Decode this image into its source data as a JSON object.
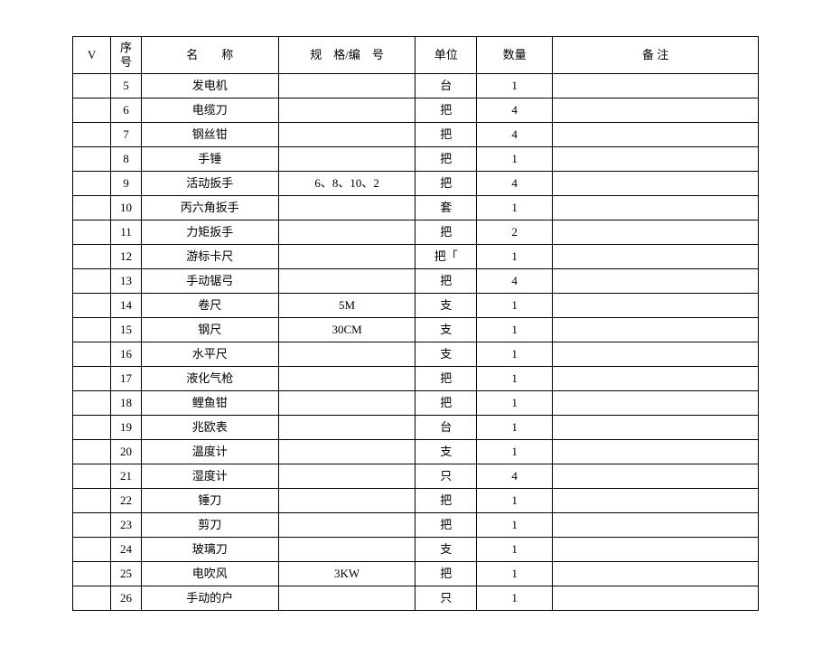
{
  "table": {
    "border_color": "#000000",
    "background_color": "#ffffff",
    "font_family": "SimSun",
    "font_size_pt": 10,
    "header": {
      "v": "V",
      "seq": "序号",
      "name": "名　　称",
      "spec": "规　格/编　号",
      "unit": "单位",
      "qty": "数量",
      "note": "备 注"
    },
    "rows": [
      {
        "v": "",
        "seq": "5",
        "name": "发电机",
        "spec": "",
        "unit": "台",
        "qty": "1",
        "note": ""
      },
      {
        "v": "",
        "seq": "6",
        "name": "电缆刀",
        "spec": "",
        "unit": "把",
        "qty": "4",
        "note": ""
      },
      {
        "v": "",
        "seq": "7",
        "name": "钢丝钳",
        "spec": "",
        "unit": "把",
        "qty": "4",
        "note": ""
      },
      {
        "v": "",
        "seq": "8",
        "name": "手锤",
        "spec": "",
        "unit": "把",
        "qty": "1",
        "note": ""
      },
      {
        "v": "",
        "seq": "9",
        "name": "活动扳手",
        "spec": "6、8、10、2",
        "unit": "把",
        "qty": "4",
        "note": ""
      },
      {
        "v": "",
        "seq": "10",
        "name": "丙六角扳手",
        "spec": "",
        "unit": "套",
        "qty": "1",
        "note": ""
      },
      {
        "v": "",
        "seq": "11",
        "name": "力矩扳手",
        "spec": "",
        "unit": "把",
        "qty": "2",
        "note": ""
      },
      {
        "v": "",
        "seq": "12",
        "name": "游标卡尺",
        "spec": "",
        "unit": "把「",
        "qty": "1",
        "note": ""
      },
      {
        "v": "",
        "seq": "13",
        "name": "手动锯弓",
        "spec": "",
        "unit": "把",
        "qty": "4",
        "note": ""
      },
      {
        "v": "",
        "seq": "14",
        "name": "卷尺",
        "spec": "5M",
        "unit": "支",
        "qty": "1",
        "note": ""
      },
      {
        "v": "",
        "seq": "15",
        "name": "钢尺",
        "spec": "30CM",
        "unit": "支",
        "qty": "1",
        "note": ""
      },
      {
        "v": "",
        "seq": "16",
        "name": "水平尺",
        "spec": "",
        "unit": "支",
        "qty": "1",
        "note": ""
      },
      {
        "v": "",
        "seq": "17",
        "name": "液化气枪",
        "spec": "",
        "unit": "把",
        "qty": "1",
        "note": ""
      },
      {
        "v": "",
        "seq": "18",
        "name": "鲤鱼钳",
        "spec": "",
        "unit": "把",
        "qty": "1",
        "note": ""
      },
      {
        "v": "",
        "seq": "19",
        "name": "兆欧表",
        "spec": "",
        "unit": "台",
        "qty": "1",
        "note": ""
      },
      {
        "v": "",
        "seq": "20",
        "name": "温度计",
        "spec": "",
        "unit": "支",
        "qty": "1",
        "note": ""
      },
      {
        "v": "",
        "seq": "21",
        "name": "湿度计",
        "spec": "",
        "unit": "只",
        "qty": "4",
        "note": ""
      },
      {
        "v": "",
        "seq": "22",
        "name": "锤刀",
        "spec": "",
        "unit": "把",
        "qty": "1",
        "note": ""
      },
      {
        "v": "",
        "seq": "23",
        "name": "剪刀",
        "spec": "",
        "unit": "把",
        "qty": "1",
        "note": ""
      },
      {
        "v": "",
        "seq": "24",
        "name": "玻璃刀",
        "spec": "",
        "unit": "支",
        "qty": "1",
        "note": ""
      },
      {
        "v": "",
        "seq": "25",
        "name": "电吹风",
        "spec": "3KW",
        "unit": "把",
        "qty": "1",
        "note": ""
      },
      {
        "v": "",
        "seq": "26",
        "name": "手动的户",
        "spec": "",
        "unit": "只",
        "qty": "1",
        "note": ""
      }
    ]
  }
}
